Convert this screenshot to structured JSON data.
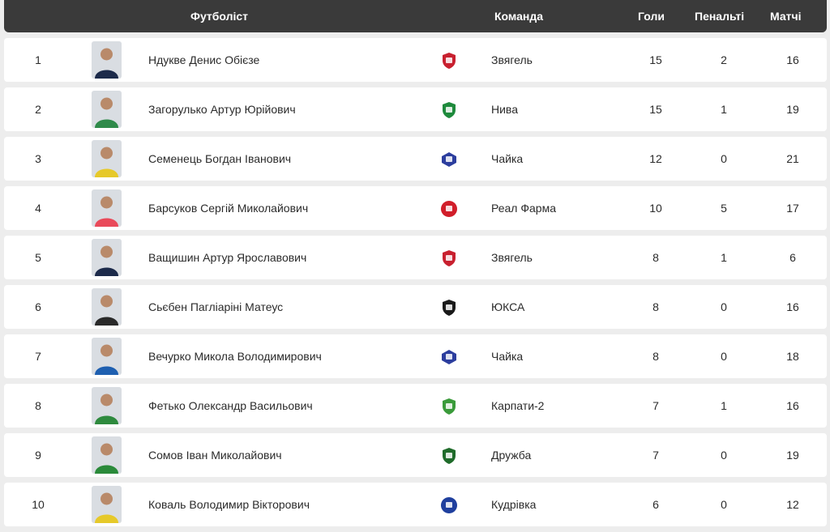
{
  "header": {
    "player": "Футболіст",
    "team": "Команда",
    "goals": "Голи",
    "penalties": "Пенальті",
    "matches": "Матчі"
  },
  "rows": [
    {
      "rank": "1",
      "name": "Ндукве Денис Обієзе",
      "team": "Звягель",
      "goals": "15",
      "penalties": "2",
      "matches": "16",
      "team_color": "#c8202f",
      "shirt_color": "#1c2a4a",
      "logo_icon": "shield-icon"
    },
    {
      "rank": "2",
      "name": "Загорулько Артур Юрійович",
      "team": "Нива",
      "goals": "15",
      "penalties": "1",
      "matches": "19",
      "team_color": "#1e8a3c",
      "shirt_color": "#2f8a4a",
      "logo_icon": "shield-icon"
    },
    {
      "rank": "3",
      "name": "Семенець Богдан Іванович",
      "team": "Чайка",
      "goals": "12",
      "penalties": "0",
      "matches": "21",
      "team_color": "#2c3e9e",
      "shirt_color": "#e6c92a",
      "logo_icon": "badge-icon"
    },
    {
      "rank": "4",
      "name": "Барсуков Сергій Миколайович",
      "team": "Реал Фарма",
      "goals": "10",
      "penalties": "5",
      "matches": "17",
      "team_color": "#d11e2a",
      "shirt_color": "#e94a5a",
      "logo_icon": "circle-icon"
    },
    {
      "rank": "5",
      "name": "Ващишин Артур Ярославович",
      "team": "Звягель",
      "goals": "8",
      "penalties": "1",
      "matches": "6",
      "team_color": "#c8202f",
      "shirt_color": "#1c2a4a",
      "logo_icon": "shield-icon"
    },
    {
      "rank": "6",
      "name": "Сьєбен Пагліаріні Матеус",
      "team": "ЮКСА",
      "goals": "8",
      "penalties": "0",
      "matches": "16",
      "team_color": "#1a1a1a",
      "shirt_color": "#2a2a2a",
      "logo_icon": "shield-icon"
    },
    {
      "rank": "7",
      "name": "Вечурко Микола Володимирович",
      "team": "Чайка",
      "goals": "8",
      "penalties": "0",
      "matches": "18",
      "team_color": "#2c3e9e",
      "shirt_color": "#1e5fb0",
      "logo_icon": "badge-icon"
    },
    {
      "rank": "8",
      "name": "Фетько Олександр Васильович",
      "team": "Карпати-2",
      "goals": "7",
      "penalties": "1",
      "matches": "16",
      "team_color": "#3a9b3a",
      "shirt_color": "#2e8a3e",
      "logo_icon": "shield-icon"
    },
    {
      "rank": "9",
      "name": "Сомов Іван Миколайович",
      "team": "Дружба",
      "goals": "7",
      "penalties": "0",
      "matches": "19",
      "team_color": "#1f6b2a",
      "shirt_color": "#2a8a3a",
      "logo_icon": "shield-icon"
    },
    {
      "rank": "10",
      "name": "Коваль Володимир Вікторович",
      "team": "Кудрівка",
      "goals": "6",
      "penalties": "0",
      "matches": "12",
      "team_color": "#1f3f9e",
      "shirt_color": "#e6c92a",
      "logo_icon": "circle-icon"
    }
  ]
}
